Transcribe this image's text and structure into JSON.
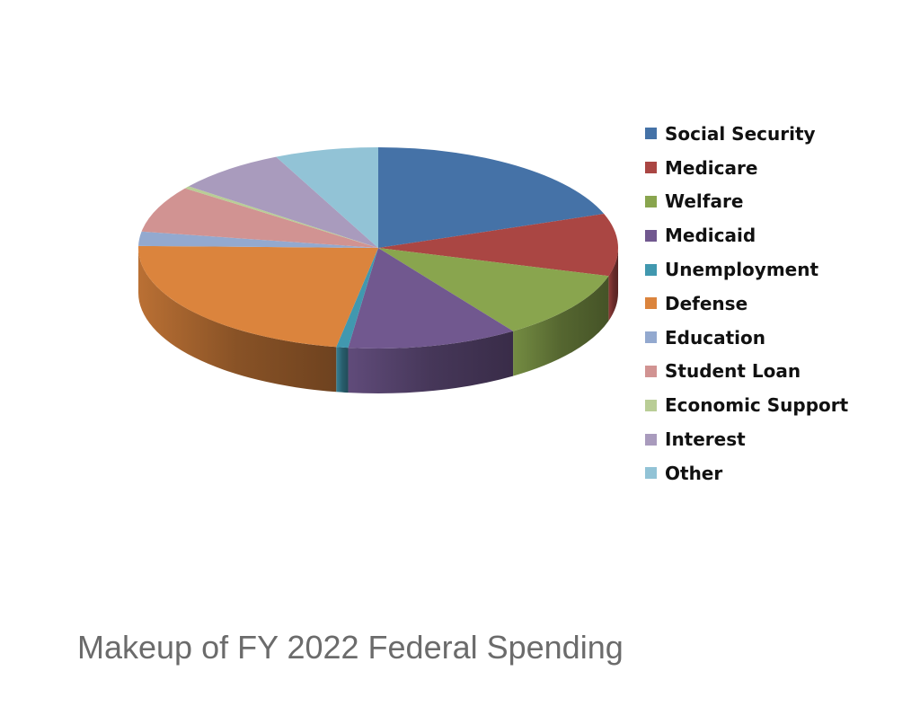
{
  "caption": "Makeup of FY 2022 Federal Spending",
  "chart_data": {
    "type": "pie",
    "title": "",
    "style": "3d",
    "legend_position": "right",
    "categories": [
      "Social Security",
      "Medicare",
      "Welfare",
      "Medicaid",
      "Unemployment",
      "Defense",
      "Education",
      "Student Loan",
      "Economic Support",
      "Interest",
      "Other"
    ],
    "values": [
      19.5,
      10.0,
      11.0,
      11.5,
      0.8,
      22.5,
      2.3,
      7.5,
      0.4,
      7.5,
      7.0
    ],
    "colors": [
      "#4572A7",
      "#AA4643",
      "#89A54E",
      "#71588F",
      "#4198AF",
      "#DB843D",
      "#93A9CF",
      "#D19392",
      "#B9CD96",
      "#A99BBD",
      "#92C3D6"
    ]
  }
}
